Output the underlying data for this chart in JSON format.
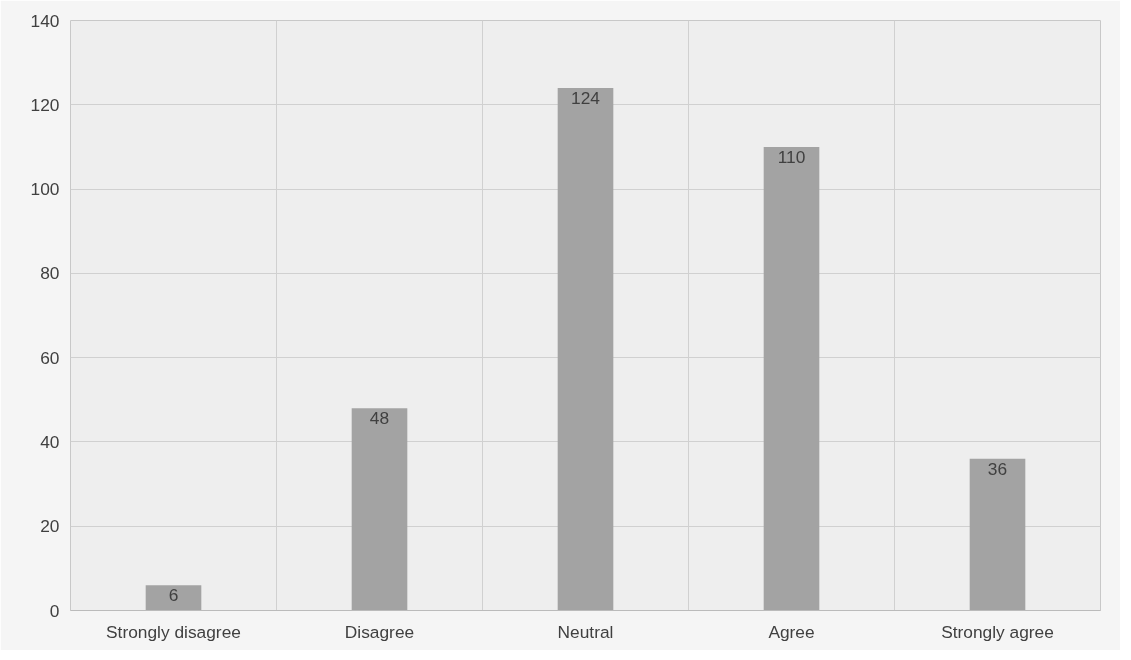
{
  "chart_data": {
    "type": "bar",
    "categories": [
      "Strongly disagree",
      "Disagree",
      "Neutral",
      "Agree",
      "Strongly agree"
    ],
    "values": [
      6,
      48,
      124,
      110,
      36
    ],
    "color": "#a3a3a3",
    "ylim": [
      0,
      140
    ],
    "yticks": [
      0,
      20,
      40,
      60,
      80,
      100,
      120,
      140
    ],
    "grid": true,
    "data_labels": true
  }
}
